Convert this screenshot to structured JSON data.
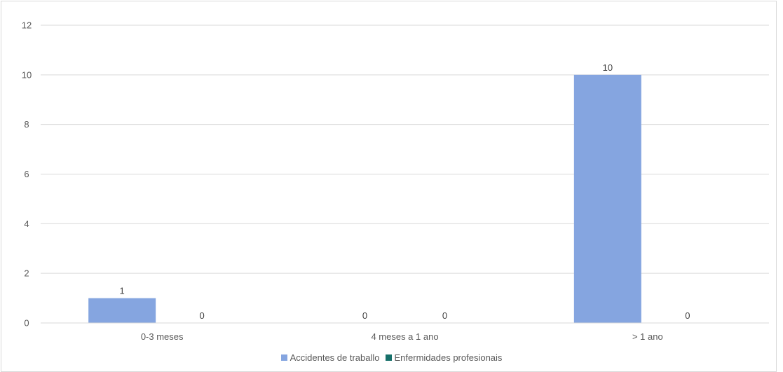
{
  "chart_data": {
    "type": "bar",
    "categories": [
      "0-3 meses",
      "4 meses a 1 ano",
      "> 1 ano"
    ],
    "series": [
      {
        "name": "Accidentes de traballo",
        "values": [
          1,
          0,
          10
        ],
        "color": "#85A5E0"
      },
      {
        "name": "Enfermidades profesionais",
        "values": [
          0,
          0,
          0
        ],
        "color": "#17706A"
      }
    ],
    "ylim": [
      0,
      12
    ],
    "yticks": [
      "0",
      "2",
      "4",
      "6",
      "8",
      "10",
      "12"
    ],
    "grid": true,
    "legend_position": "bottom",
    "data_labels": true
  }
}
